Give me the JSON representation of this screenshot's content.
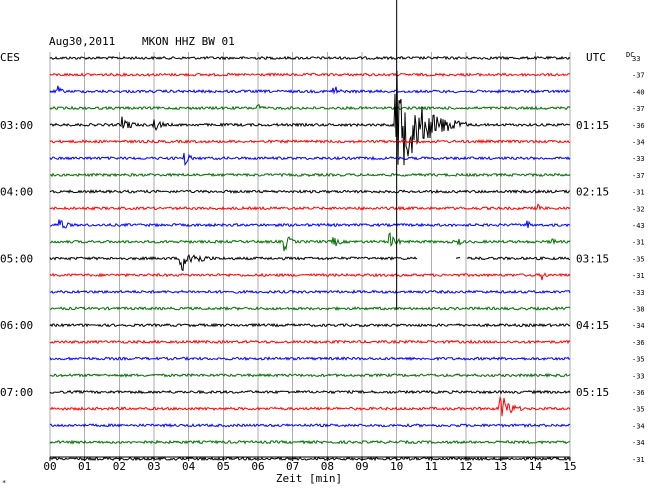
{
  "header": {
    "date": "Aug30,2011",
    "station": "MKON HHZ BW 01",
    "left_tz": "CES",
    "right_tz": "UTC",
    "dc_label": "DC",
    "footnote": "*"
  },
  "chart_data": {
    "type": "line",
    "title": "Aug30,2011  MKON HHZ BW 01",
    "xlabel": "Zeit [min]",
    "ylabel": "",
    "x_ticks": [
      "00",
      "01",
      "02",
      "03",
      "04",
      "05",
      "06",
      "07",
      "08",
      "09",
      "10",
      "11",
      "12",
      "13",
      "14",
      "15"
    ],
    "xlim": [
      0,
      15
    ],
    "grid": true,
    "left_time_labels": [
      {
        "trace": 4,
        "label": "03:00"
      },
      {
        "trace": 8,
        "label": "04:00"
      },
      {
        "trace": 12,
        "label": "05:00"
      },
      {
        "trace": 16,
        "label": "06:00"
      },
      {
        "trace": 20,
        "label": "07:00"
      }
    ],
    "right_time_labels": [
      {
        "trace": 4,
        "label": "01:15"
      },
      {
        "trace": 8,
        "label": "02:15"
      },
      {
        "trace": 12,
        "label": "03:15"
      },
      {
        "trace": 16,
        "label": "04:15"
      },
      {
        "trace": 20,
        "label": "05:15"
      }
    ],
    "dc_offsets": [
      "33",
      "-37",
      "-40",
      "-37",
      "-36",
      "-34",
      "-33",
      "-37",
      "-31",
      "-32",
      "-43",
      "-31",
      "-35",
      "-31",
      "-33",
      "-38",
      "-34",
      "-36",
      "-35",
      "-33",
      "-36",
      "-35",
      "-34",
      "-34",
      "-31"
    ],
    "trace_colors": [
      "#000000",
      "#ff0000",
      "#0000ff",
      "#007000"
    ],
    "events": [
      {
        "trace": 2,
        "minute": 0.2,
        "amplitude": 7,
        "duration": 0.4
      },
      {
        "trace": 2,
        "minute": 8.2,
        "amplitude": 8,
        "duration": 0.4
      },
      {
        "trace": 3,
        "minute": 6.0,
        "amplitude": 5,
        "duration": 0.4
      },
      {
        "trace": 4,
        "minute": 2.1,
        "amplitude": 9,
        "duration": 0.7
      },
      {
        "trace": 4,
        "minute": 3.0,
        "amplitude": 7,
        "duration": 0.7
      },
      {
        "trace": 4,
        "minute": 10.0,
        "amplitude": 55,
        "duration": 2.0
      },
      {
        "trace": 6,
        "minute": 3.9,
        "amplitude": 8,
        "duration": 0.4
      },
      {
        "trace": 9,
        "minute": 14.1,
        "amplitude": 4,
        "duration": 0.4
      },
      {
        "trace": 10,
        "minute": 0.3,
        "amplitude": 8,
        "duration": 0.5
      },
      {
        "trace": 10,
        "minute": 13.8,
        "amplitude": 4,
        "duration": 0.3
      },
      {
        "trace": 11,
        "minute": 6.8,
        "amplitude": 8,
        "duration": 0.5
      },
      {
        "trace": 11,
        "minute": 8.2,
        "amplitude": 6,
        "duration": 0.5
      },
      {
        "trace": 11,
        "minute": 9.8,
        "amplitude": 9,
        "duration": 0.6
      },
      {
        "trace": 11,
        "minute": 11.8,
        "amplitude": 4,
        "duration": 0.3
      },
      {
        "trace": 11,
        "minute": 14.5,
        "amplitude": 5,
        "duration": 0.3
      },
      {
        "trace": 12,
        "minute": 3.8,
        "amplitude": 14,
        "duration": 1.2
      },
      {
        "trace": 13,
        "minute": 14.2,
        "amplitude": 6,
        "duration": 0.3
      },
      {
        "trace": 21,
        "minute": 13.0,
        "amplitude": 16,
        "duration": 0.8
      }
    ],
    "gaps": [
      {
        "trace": 12,
        "from": 10.6,
        "to": 11.7
      },
      {
        "trace": 12,
        "from": 11.85,
        "to": 12.0
      }
    ]
  }
}
